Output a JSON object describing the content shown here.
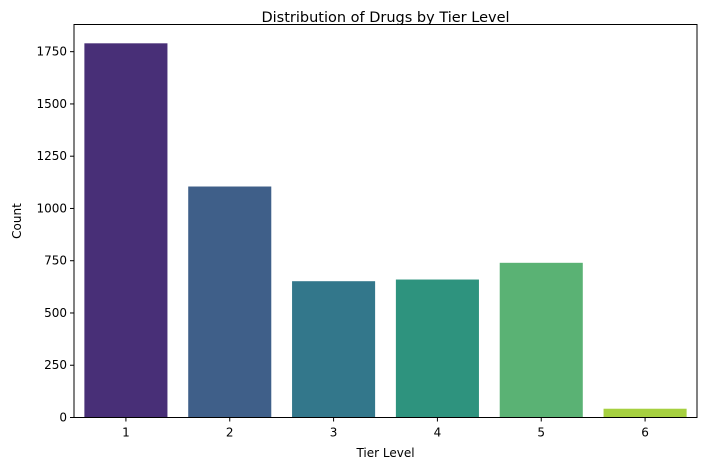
{
  "chart_data": {
    "type": "bar",
    "title": "Distribution of Drugs by Tier Level",
    "xlabel": "Tier Level",
    "ylabel": "Count",
    "categories": [
      "1",
      "2",
      "3",
      "4",
      "5",
      "6"
    ],
    "values": [
      1790,
      1105,
      652,
      660,
      740,
      42
    ],
    "ylim": [
      0,
      1880
    ],
    "yticks": [
      0,
      250,
      500,
      750,
      1000,
      1250,
      1500,
      1750
    ],
    "grid": false,
    "legend": "none",
    "bar_colors": [
      "#482f77",
      "#3f5f89",
      "#33778b",
      "#2e937e",
      "#5ab274",
      "#a6d040"
    ]
  }
}
